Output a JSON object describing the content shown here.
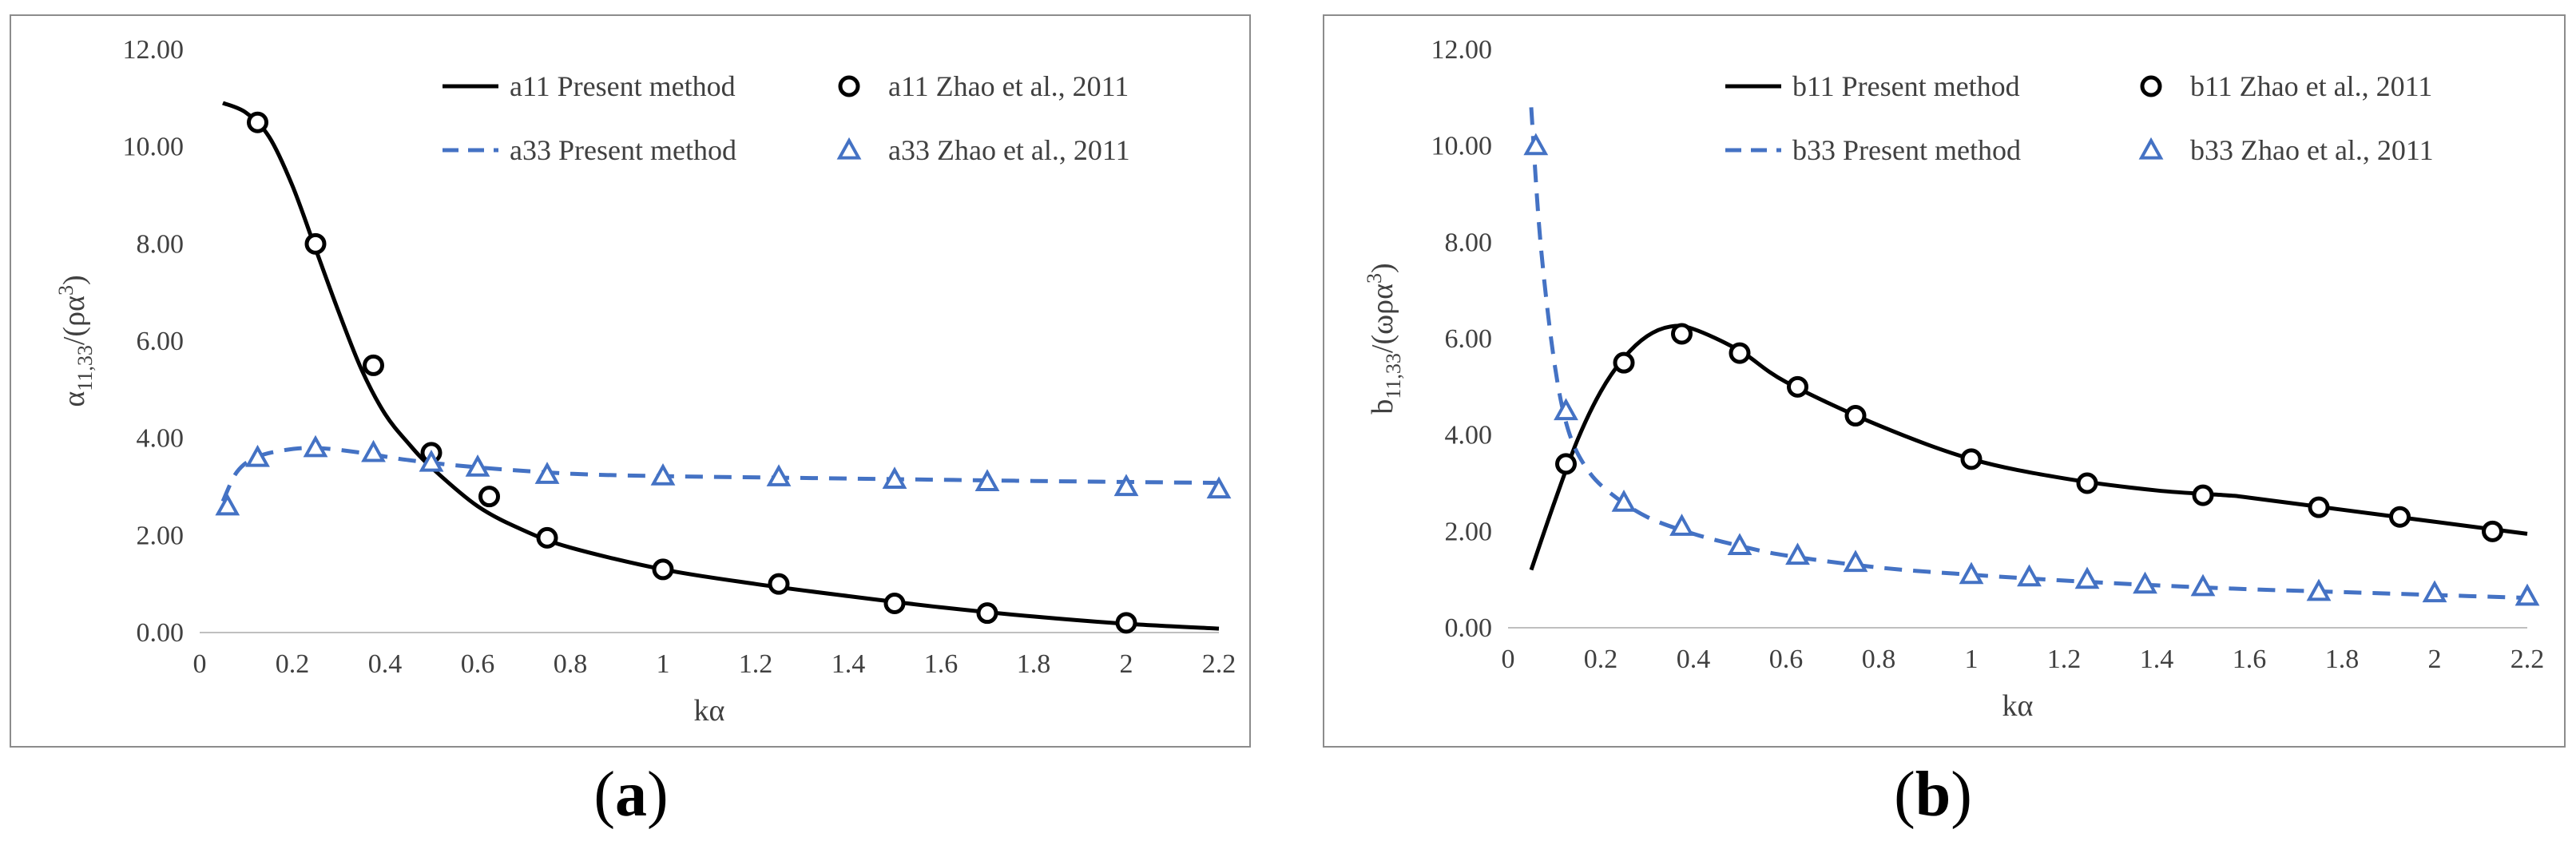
{
  "chart_data": [
    {
      "type": "line",
      "panel_label": "a",
      "xlabel": "kα",
      "ylabel": "α11,33/(ρα3)",
      "ylabel_parts": {
        "base": "α",
        "sub": "11,33",
        "mid": "/(ρα",
        "sup": "3",
        "end": ")"
      },
      "xlim": [
        0,
        2.2
      ],
      "ylim": [
        0,
        12
      ],
      "xticks": [
        "0",
        "0.2",
        "0.4",
        "0.6",
        "0.8",
        "1",
        "1.2",
        "1.4",
        "1.6",
        "1.8",
        "2",
        "2.2"
      ],
      "yticks": [
        "0.00",
        "2.00",
        "4.00",
        "6.00",
        "8.00",
        "10.00",
        "12.00"
      ],
      "legend_position": "top-right",
      "series": [
        {
          "name": "a11 Present method",
          "style": "solid-line",
          "color": "#000000",
          "x": [
            0.05,
            0.1,
            0.15,
            0.2,
            0.25,
            0.3,
            0.35,
            0.4,
            0.45,
            0.5,
            0.6,
            0.7,
            0.8,
            1.0,
            1.2,
            1.4,
            1.6,
            1.8,
            2.0,
            2.2
          ],
          "y": [
            10.9,
            10.7,
            10.2,
            9.2,
            7.9,
            6.6,
            5.4,
            4.5,
            3.9,
            3.4,
            2.6,
            2.1,
            1.75,
            1.3,
            1.0,
            0.75,
            0.52,
            0.33,
            0.18,
            0.08
          ]
        },
        {
          "name": "a11 Zhao et al., 2011",
          "style": "circle-marker",
          "color": "#000000",
          "x": [
            0.125,
            0.25,
            0.375,
            0.5,
            0.625,
            0.75,
            1.0,
            1.25,
            1.5,
            1.7,
            2.0
          ],
          "y": [
            10.5,
            8.0,
            5.5,
            3.7,
            2.8,
            1.95,
            1.3,
            1.0,
            0.6,
            0.4,
            0.2
          ]
        },
        {
          "name": "a33 Present method",
          "style": "dashed-line",
          "color": "#4472c4",
          "x": [
            0.05,
            0.08,
            0.12,
            0.18,
            0.25,
            0.35,
            0.45,
            0.6,
            0.8,
            1.0,
            1.4,
            1.8,
            2.2
          ],
          "y": [
            2.7,
            3.3,
            3.6,
            3.75,
            3.8,
            3.7,
            3.55,
            3.4,
            3.27,
            3.22,
            3.17,
            3.12,
            3.08
          ]
        },
        {
          "name": "a33 Zhao et al., 2011",
          "style": "triangle-marker",
          "color": "#4472c4",
          "x": [
            0.06,
            0.125,
            0.25,
            0.375,
            0.5,
            0.6,
            0.75,
            1.0,
            1.25,
            1.5,
            1.7,
            2.0,
            2.2
          ],
          "y": [
            2.6,
            3.6,
            3.8,
            3.7,
            3.5,
            3.4,
            3.25,
            3.22,
            3.2,
            3.15,
            3.1,
            3.0,
            2.95
          ]
        }
      ]
    },
    {
      "type": "line",
      "panel_label": "b",
      "xlabel": "kα",
      "ylabel": "b11,33/(ωρα3)",
      "ylabel_parts": {
        "base": "b",
        "sub": "11,33",
        "mid": "/(ωρα",
        "sup": "3",
        "end": ")"
      },
      "xlim": [
        0,
        2.2
      ],
      "ylim": [
        0,
        12
      ],
      "xticks": [
        "0",
        "0.2",
        "0.4",
        "0.6",
        "0.8",
        "1",
        "1.2",
        "1.4",
        "1.6",
        "1.8",
        "2",
        "2.2"
      ],
      "yticks": [
        "0.00",
        "2.00",
        "4.00",
        "6.00",
        "8.00",
        "10.00",
        "12.00"
      ],
      "legend_position": "top-right",
      "series": [
        {
          "name": "b11 Present method",
          "style": "solid-line",
          "color": "#000000",
          "x": [
            0.05,
            0.1,
            0.15,
            0.2,
            0.25,
            0.3,
            0.35,
            0.4,
            0.5,
            0.6,
            0.8,
            1.0,
            1.2,
            1.4,
            1.55,
            1.6,
            1.8,
            2.0,
            2.2
          ],
          "y": [
            1.2,
            2.6,
            3.9,
            4.9,
            5.6,
            6.05,
            6.25,
            6.2,
            5.75,
            5.1,
            4.2,
            3.5,
            3.1,
            2.85,
            2.75,
            2.7,
            2.45,
            2.2,
            1.95
          ]
        },
        {
          "name": "b11 Zhao et al., 2011",
          "style": "circle-marker",
          "color": "#000000",
          "x": [
            0.125,
            0.25,
            0.375,
            0.5,
            0.625,
            0.75,
            1.0,
            1.25,
            1.5,
            1.75,
            1.925,
            2.125
          ],
          "y": [
            3.4,
            5.5,
            6.1,
            5.7,
            5.0,
            4.4,
            3.5,
            3.0,
            2.75,
            2.5,
            2.3,
            2.0
          ]
        },
        {
          "name": "b33 Present method",
          "style": "dashed-line",
          "color": "#4472c4",
          "x": [
            0.05,
            0.07,
            0.1,
            0.13,
            0.17,
            0.22,
            0.3,
            0.4,
            0.5,
            0.6,
            0.8,
            1.0,
            1.2,
            1.4,
            1.6,
            1.8,
            2.0,
            2.2
          ],
          "y": [
            10.8,
            8.0,
            5.5,
            4.1,
            3.3,
            2.8,
            2.3,
            1.95,
            1.7,
            1.5,
            1.25,
            1.1,
            0.98,
            0.88,
            0.8,
            0.74,
            0.68,
            0.62
          ]
        },
        {
          "name": "b33 Zhao et al., 2011",
          "style": "triangle-marker",
          "color": "#4472c4",
          "x": [
            0.06,
            0.125,
            0.25,
            0.375,
            0.5,
            0.625,
            0.75,
            1.0,
            1.125,
            1.25,
            1.375,
            1.5,
            1.75,
            2.0,
            2.2
          ],
          "y": [
            10.0,
            4.5,
            2.6,
            2.1,
            1.7,
            1.5,
            1.35,
            1.1,
            1.05,
            1.0,
            0.9,
            0.85,
            0.75,
            0.72,
            0.65
          ]
        }
      ]
    }
  ]
}
